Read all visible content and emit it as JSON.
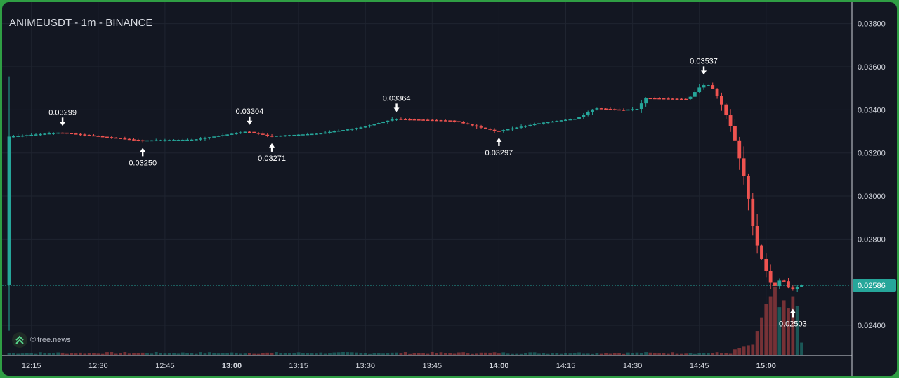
{
  "header": {
    "title": "ANIMEUSDT - 1m - BINANCE"
  },
  "watermark": {
    "copyright": "©",
    "name": "tree.news",
    "icon": "tree-news-logo-icon"
  },
  "colors": {
    "up": "#26a69a",
    "down": "#ef5350",
    "background": "#131722",
    "frame": "#2f9e44",
    "grid": "#1f2430",
    "text": "#d1d4dc"
  },
  "chart_data": {
    "type": "candlestick",
    "symbol": "ANIMEUSDT",
    "interval": "1m",
    "exchange": "BINANCE",
    "x_range": [
      "12:10",
      "15:20"
    ],
    "ylim": [
      0.0226,
      0.039
    ],
    "y_ticks": [
      "0.03800",
      "0.03600",
      "0.03400",
      "0.03200",
      "0.03000",
      "0.02800",
      "0.02400"
    ],
    "x_ticks": [
      {
        "label": "12:15",
        "bold": false
      },
      {
        "label": "12:30",
        "bold": false
      },
      {
        "label": "12:45",
        "bold": false
      },
      {
        "label": "13:00",
        "bold": true
      },
      {
        "label": "13:15",
        "bold": false
      },
      {
        "label": "13:30",
        "bold": false
      },
      {
        "label": "13:45",
        "bold": false
      },
      {
        "label": "14:00",
        "bold": true
      },
      {
        "label": "14:15",
        "bold": false
      },
      {
        "label": "14:30",
        "bold": false
      },
      {
        "label": "14:45",
        "bold": false
      },
      {
        "label": "15:00",
        "bold": true
      }
    ],
    "grid": true,
    "current_price": {
      "label": "0.02586",
      "value": 0.02586
    },
    "annotations": [
      {
        "time": "12:22",
        "label": "0.03299",
        "value": 0.03299,
        "type": "high"
      },
      {
        "time": "12:40",
        "label": "0.03250",
        "value": 0.0325,
        "type": "low"
      },
      {
        "time": "13:04",
        "label": "0.03304",
        "value": 0.03304,
        "type": "high"
      },
      {
        "time": "13:09",
        "label": "0.03271",
        "value": 0.03271,
        "type": "low"
      },
      {
        "time": "13:37",
        "label": "0.03364",
        "value": 0.03364,
        "type": "high"
      },
      {
        "time": "14:00",
        "label": "0.03297",
        "value": 0.03297,
        "type": "low"
      },
      {
        "time": "14:46",
        "label": "0.03537",
        "value": 0.03537,
        "type": "high"
      },
      {
        "time": "15:06",
        "label": "0.02503",
        "value": 0.02503,
        "type": "low"
      }
    ],
    "price_path": [
      [
        "12:10",
        0.03275
      ],
      [
        "12:22",
        0.03295
      ],
      [
        "12:40",
        0.03258
      ],
      [
        "12:52",
        0.03262
      ],
      [
        "13:04",
        0.033
      ],
      [
        "13:09",
        0.03278
      ],
      [
        "13:20",
        0.0329
      ],
      [
        "13:30",
        0.0332
      ],
      [
        "13:37",
        0.03358
      ],
      [
        "13:50",
        0.0335
      ],
      [
        "14:00",
        0.033
      ],
      [
        "14:10",
        0.0334
      ],
      [
        "14:18",
        0.0336
      ],
      [
        "14:22",
        0.03408
      ],
      [
        "14:28",
        0.034
      ],
      [
        "14:32",
        0.03405
      ],
      [
        "14:33",
        0.03455
      ],
      [
        "14:43",
        0.0345
      ],
      [
        "14:46",
        0.03515
      ],
      [
        "14:48",
        0.03515
      ],
      [
        "14:50",
        0.0345
      ],
      [
        "14:53",
        0.033
      ],
      [
        "14:56",
        0.0305
      ],
      [
        "14:58",
        0.028
      ],
      [
        "15:00",
        0.0268
      ],
      [
        "15:02",
        0.0257
      ],
      [
        "15:04",
        0.0262
      ],
      [
        "15:06",
        0.0256
      ],
      [
        "15:08",
        0.02586
      ]
    ],
    "volume": {
      "scale_max": 100,
      "low_activity_level": 3,
      "bars": [
        [
          "14:53",
          8
        ],
        [
          "14:54",
          10
        ],
        [
          "14:55",
          12
        ],
        [
          "14:56",
          14
        ],
        [
          "14:57",
          15
        ],
        [
          "14:58",
          35
        ],
        [
          "14:59",
          55
        ],
        [
          "15:00",
          75
        ],
        [
          "15:01",
          85
        ],
        [
          "15:02",
          100
        ],
        [
          "15:03",
          70
        ],
        [
          "15:04",
          80
        ],
        [
          "15:05",
          68
        ],
        [
          "15:06",
          85
        ],
        [
          "15:07",
          72
        ],
        [
          "15:08",
          18
        ]
      ]
    }
  }
}
